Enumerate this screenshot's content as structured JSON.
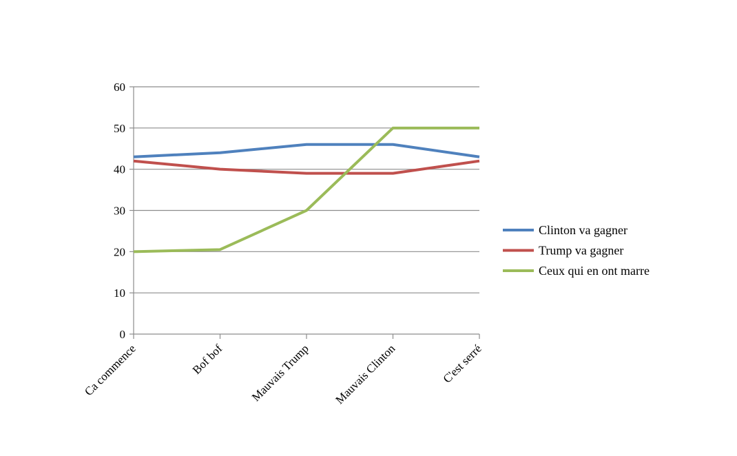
{
  "chart_data": {
    "type": "line",
    "categories": [
      "Ca commence",
      "Bof bof",
      "Mauvais Trump",
      "Mauvais Clinton",
      "C'est serré"
    ],
    "series": [
      {
        "name": "Clinton va gagner",
        "color": "#4f81bd",
        "values": [
          43,
          44,
          46,
          46,
          43
        ]
      },
      {
        "name": "Trump va gagner",
        "color": "#c0504d",
        "values": [
          42,
          40,
          39,
          39,
          42
        ]
      },
      {
        "name": "Ceux qui en ont marre",
        "color": "#9bbb59",
        "values": [
          20,
          20.5,
          30,
          50,
          50
        ]
      }
    ],
    "ylim": [
      0,
      60
    ],
    "yticks": [
      "0",
      "10",
      "20",
      "30",
      "40",
      "50",
      "60"
    ],
    "grid": true,
    "legend_position": "right"
  }
}
